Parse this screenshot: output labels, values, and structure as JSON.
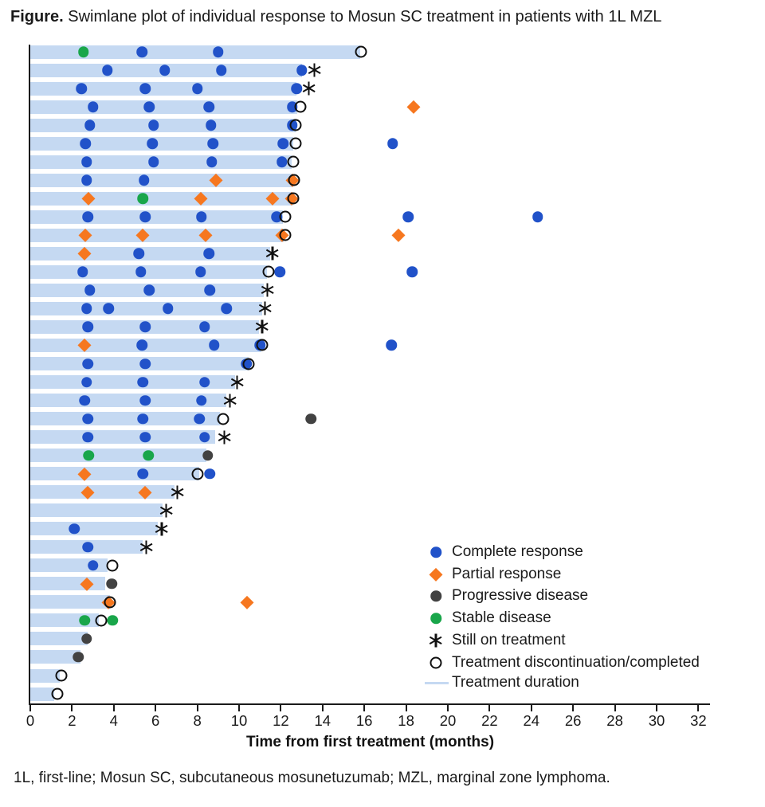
{
  "title": {
    "prefix": "Figure.",
    "rest": " Swimlane plot of individual response to Mosun SC treatment in patients with 1L MZL"
  },
  "footnote": "1L, first-line; Mosun SC, subcutaneous mosunetuzumab; MZL, marginal zone lymphoma.",
  "chart_data": {
    "type": "swimlane",
    "xlabel": "Time from first treatment (months)",
    "x_ticks": [
      0,
      2,
      4,
      6,
      8,
      10,
      12,
      14,
      16,
      18,
      20,
      22,
      24,
      26,
      28,
      30,
      32
    ],
    "xlim": [
      0,
      32.6
    ],
    "n_patients": 36,
    "colors": {
      "complete_response": "#2152c9",
      "partial_response": "#f6771f",
      "progressive_disease": "#424242",
      "stable_disease": "#19a64a",
      "still_on_treatment": "#111111",
      "discontinuation_ring": "#101010",
      "treatment_duration": "#c5d9f2"
    },
    "legend": [
      {
        "type": "cr",
        "label": "Complete response"
      },
      {
        "type": "pr",
        "label": "Partial response"
      },
      {
        "type": "pd",
        "label": "Progressive disease"
      },
      {
        "type": "sd",
        "label": "Stable disease"
      },
      {
        "type": "ot",
        "label": "Still on treatment"
      },
      {
        "type": "dc",
        "label": "Treatment discontinuation/completed"
      },
      {
        "type": "dur",
        "label": "Treatment duration"
      }
    ],
    "marker_legend_key": {
      "cr": "Complete response",
      "pr": "Partial response",
      "pd": "Progressive disease",
      "sd": "Stable disease",
      "ot": "Still on treatment",
      "dc": "Treatment discontinuation/completed"
    },
    "lanes": [
      {
        "duration": 15.8,
        "markers": [
          [
            "sd",
            2.55
          ],
          [
            "cr",
            5.35
          ],
          [
            "cr",
            9.0
          ],
          [
            "dc",
            15.85
          ]
        ]
      },
      {
        "duration": 13.0,
        "markers": [
          [
            "cr",
            3.7
          ],
          [
            "cr",
            6.45
          ],
          [
            "cr",
            9.15
          ],
          [
            "cr",
            13.0
          ],
          [
            "ot",
            13.6
          ]
        ]
      },
      {
        "duration": 12.75,
        "markers": [
          [
            "cr",
            2.45
          ],
          [
            "cr",
            5.5
          ],
          [
            "cr",
            8.0
          ],
          [
            "cr",
            12.75
          ],
          [
            "ot",
            13.35
          ]
        ]
      },
      {
        "duration": 12.8,
        "markers": [
          [
            "cr",
            3.0
          ],
          [
            "cr",
            5.7
          ],
          [
            "cr",
            8.55
          ],
          [
            "cr",
            12.55
          ],
          [
            "dc",
            12.95
          ],
          [
            "pr",
            18.35
          ]
        ]
      },
      {
        "duration": 12.7,
        "markers": [
          [
            "cr",
            2.85
          ],
          [
            "cr",
            5.9
          ],
          [
            "cr",
            8.65
          ],
          [
            "cr",
            12.55
          ],
          [
            "dc",
            12.7
          ]
        ]
      },
      {
        "duration": 12.6,
        "markers": [
          [
            "cr",
            2.65
          ],
          [
            "cr",
            5.85
          ],
          [
            "cr",
            8.75
          ],
          [
            "cr",
            12.1
          ],
          [
            "dc",
            12.7
          ],
          [
            "cr",
            17.35
          ]
        ]
      },
      {
        "duration": 12.5,
        "markers": [
          [
            "cr",
            2.7
          ],
          [
            "cr",
            5.9
          ],
          [
            "cr",
            8.7
          ],
          [
            "cr",
            12.05
          ],
          [
            "dc",
            12.6
          ]
        ]
      },
      {
        "duration": 12.55,
        "markers": [
          [
            "cr",
            2.7
          ],
          [
            "cr",
            5.45
          ],
          [
            "pr",
            8.9
          ],
          [
            "pr",
            12.55
          ],
          [
            "dc",
            12.65
          ]
        ]
      },
      {
        "duration": 12.55,
        "markers": [
          [
            "pr",
            2.8
          ],
          [
            "sd",
            5.4
          ],
          [
            "pr",
            8.15
          ],
          [
            "pr",
            11.6
          ],
          [
            "pr",
            12.5
          ],
          [
            "dc",
            12.6
          ]
        ]
      },
      {
        "duration": 12.1,
        "markers": [
          [
            "cr",
            2.75
          ],
          [
            "cr",
            5.5
          ],
          [
            "cr",
            8.2
          ],
          [
            "cr",
            11.8
          ],
          [
            "dc",
            12.2
          ],
          [
            "cr",
            18.1
          ],
          [
            "cr",
            24.3
          ]
        ]
      },
      {
        "duration": 12.15,
        "markers": [
          [
            "pr",
            2.65
          ],
          [
            "pr",
            5.4
          ],
          [
            "pr",
            8.4
          ],
          [
            "pr",
            12.05
          ],
          [
            "dc",
            12.2
          ],
          [
            "pr",
            17.65
          ]
        ]
      },
      {
        "duration": 11.5,
        "markers": [
          [
            "pr",
            2.6
          ],
          [
            "cr",
            5.2
          ],
          [
            "cr",
            8.55
          ],
          [
            "ot",
            11.6
          ]
        ]
      },
      {
        "duration": 11.35,
        "markers": [
          [
            "cr",
            2.5
          ],
          [
            "cr",
            5.3
          ],
          [
            "cr",
            8.15
          ],
          [
            "dc",
            11.4
          ],
          [
            "cr",
            11.95
          ],
          [
            "cr",
            18.3
          ]
        ]
      },
      {
        "duration": 11.2,
        "markers": [
          [
            "cr",
            2.85
          ],
          [
            "cr",
            5.7
          ],
          [
            "cr",
            8.6
          ],
          [
            "ot",
            11.35
          ]
        ]
      },
      {
        "duration": 11.1,
        "markers": [
          [
            "cr",
            2.7
          ],
          [
            "cr",
            3.75
          ],
          [
            "cr",
            6.6
          ],
          [
            "cr",
            9.4
          ],
          [
            "ot",
            11.25
          ]
        ]
      },
      {
        "duration": 10.95,
        "markers": [
          [
            "cr",
            2.75
          ],
          [
            "cr",
            5.5
          ],
          [
            "cr",
            8.35
          ],
          [
            "ot",
            11.1
          ]
        ]
      },
      {
        "duration": 11.05,
        "markers": [
          [
            "pr",
            2.6
          ],
          [
            "cr",
            5.35
          ],
          [
            "cr",
            8.8
          ],
          [
            "cr",
            11.0
          ],
          [
            "dc",
            11.1
          ],
          [
            "cr",
            17.3
          ]
        ]
      },
      {
        "duration": 10.45,
        "markers": [
          [
            "cr",
            2.75
          ],
          [
            "cr",
            5.5
          ],
          [
            "cr",
            10.35
          ],
          [
            "dc",
            10.45
          ]
        ]
      },
      {
        "duration": 9.8,
        "markers": [
          [
            "cr",
            2.7
          ],
          [
            "cr",
            5.4
          ],
          [
            "cr",
            8.35
          ],
          [
            "ot",
            9.9
          ]
        ]
      },
      {
        "duration": 9.4,
        "markers": [
          [
            "cr",
            2.6
          ],
          [
            "cr",
            5.5
          ],
          [
            "cr",
            8.2
          ],
          [
            "ot",
            9.55
          ]
        ]
      },
      {
        "duration": 9.1,
        "markers": [
          [
            "cr",
            2.75
          ],
          [
            "cr",
            5.4
          ],
          [
            "cr",
            8.1
          ],
          [
            "dc",
            9.25
          ],
          [
            "pd",
            13.45
          ]
        ]
      },
      {
        "duration": 8.85,
        "markers": [
          [
            "cr",
            2.75
          ],
          [
            "cr",
            5.5
          ],
          [
            "cr",
            8.35
          ],
          [
            "ot",
            9.3
          ]
        ]
      },
      {
        "duration": 8.45,
        "markers": [
          [
            "sd",
            2.8
          ],
          [
            "sd",
            5.65
          ],
          [
            "pd",
            8.5
          ]
        ]
      },
      {
        "duration": 8.1,
        "markers": [
          [
            "pr",
            2.6
          ],
          [
            "cr",
            5.4
          ],
          [
            "dc",
            8.0
          ],
          [
            "cr",
            8.6
          ]
        ]
      },
      {
        "duration": 6.9,
        "markers": [
          [
            "pr",
            2.75
          ],
          [
            "pr",
            5.5
          ],
          [
            "ot",
            7.05
          ]
        ]
      },
      {
        "duration": 6.35,
        "markers": [
          [
            "ot",
            6.5
          ]
        ]
      },
      {
        "duration": 6.1,
        "markers": [
          [
            "cr",
            2.1
          ],
          [
            "ot",
            6.3
          ]
        ]
      },
      {
        "duration": 5.4,
        "markers": [
          [
            "cr",
            2.75
          ],
          [
            "ot",
            5.55
          ]
        ]
      },
      {
        "duration": 3.7,
        "markers": [
          [
            "cr",
            3.0
          ],
          [
            "dc",
            3.95
          ]
        ]
      },
      {
        "duration": 3.6,
        "markers": [
          [
            "pr",
            2.7
          ],
          [
            "pd",
            3.9
          ]
        ]
      },
      {
        "duration": 3.8,
        "markers": [
          [
            "pr",
            3.75
          ],
          [
            "dc",
            3.8
          ],
          [
            "pr",
            10.4
          ]
        ]
      },
      {
        "duration": 3.3,
        "markers": [
          [
            "sd",
            2.6
          ],
          [
            "dc",
            3.4
          ],
          [
            "sd",
            3.95
          ]
        ]
      },
      {
        "duration": 2.75,
        "markers": [
          [
            "pd",
            2.7
          ]
        ]
      },
      {
        "duration": 2.4,
        "markers": [
          [
            "pd",
            2.3
          ]
        ]
      },
      {
        "duration": 1.4,
        "markers": [
          [
            "dc",
            1.5
          ]
        ]
      },
      {
        "duration": 1.15,
        "markers": [
          [
            "dc",
            1.3
          ]
        ]
      }
    ]
  }
}
